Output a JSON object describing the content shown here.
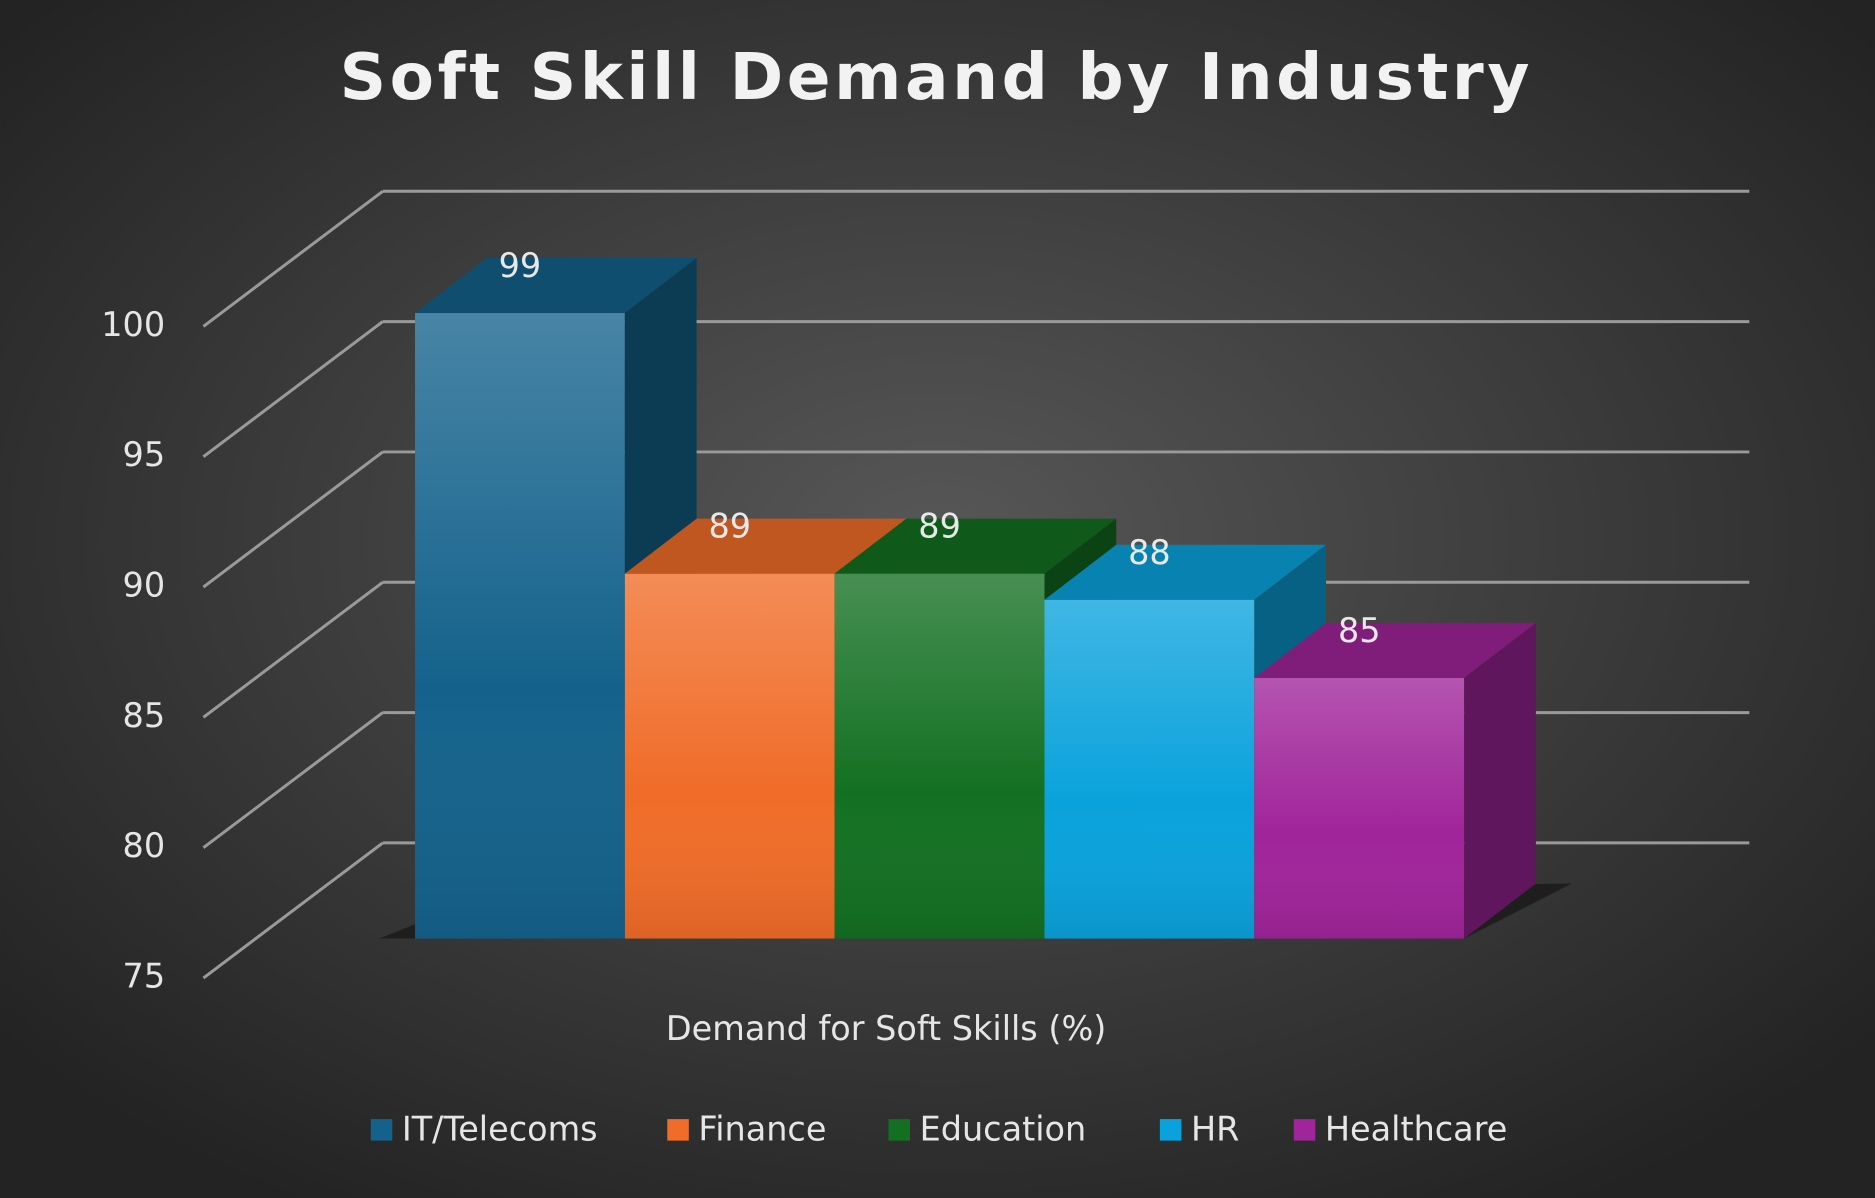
{
  "chart_data": {
    "type": "bar3d",
    "title": "Soft Skill Demand by Industry",
    "categories": [
      "Demand for Soft Skills (%)"
    ],
    "series": [
      {
        "name": "IT/Telecoms",
        "color": "#14628c",
        "values": [
          99
        ]
      },
      {
        "name": "Finance",
        "color": "#f06c28",
        "values": [
          89
        ]
      },
      {
        "name": "Education",
        "color": "#137022",
        "values": [
          89
        ]
      },
      {
        "name": "HR",
        "color": "#0aa2dc",
        "values": [
          88
        ]
      },
      {
        "name": "Healthcare",
        "color": "#a0249a",
        "values": [
          85
        ]
      }
    ],
    "ylim": [
      75,
      100
    ],
    "yticks": [
      75,
      80,
      85,
      90,
      95,
      100
    ],
    "grid": true,
    "legend": "bottom"
  }
}
